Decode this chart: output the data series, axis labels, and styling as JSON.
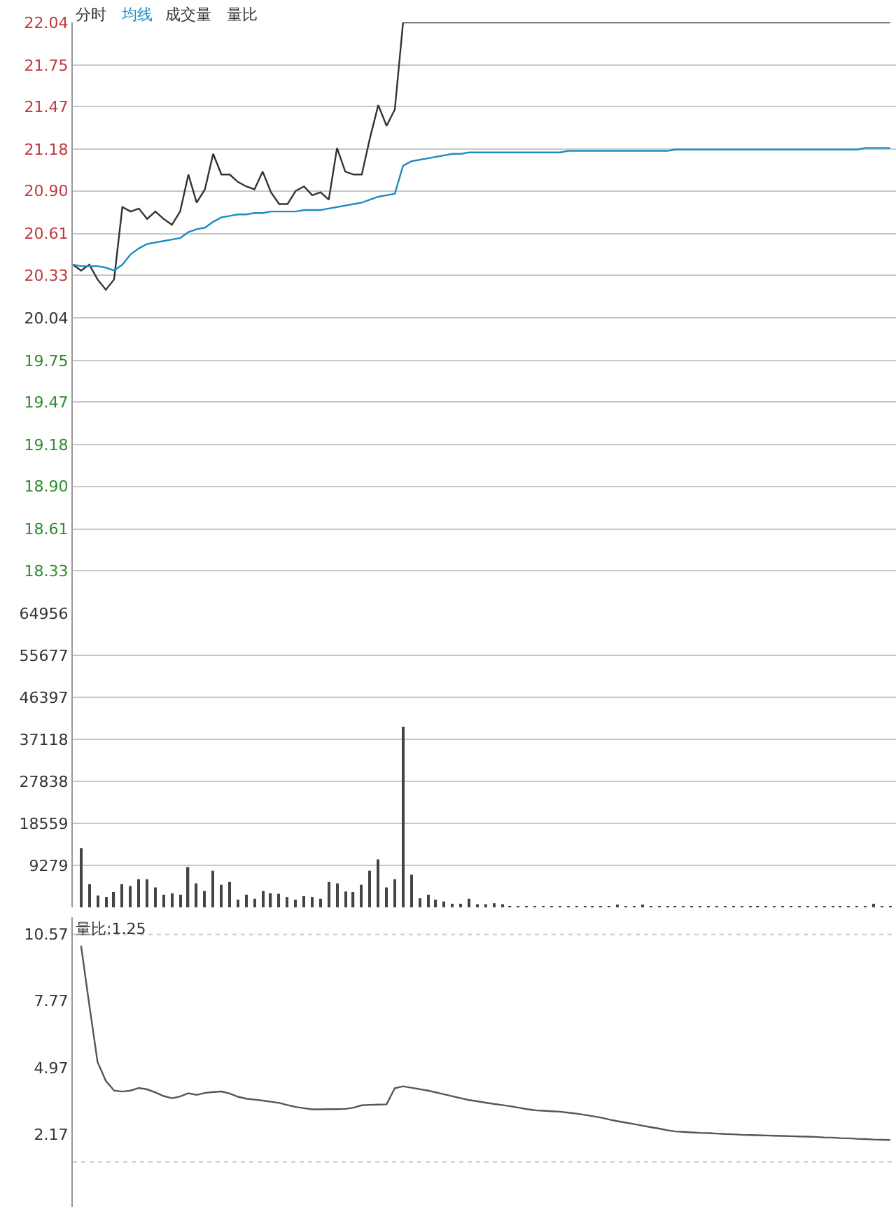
{
  "chart_data": [
    {
      "type": "line",
      "legend": "top left",
      "grid": "y",
      "tick_labels": "y",
      "line_style": "solid",
      "marker": "none",
      "annotations": [
        "成交量",
        "量比"
      ],
      "categories": [
        null,
        null,
        null,
        null,
        null,
        null,
        null,
        null,
        null,
        null,
        null,
        null,
        null,
        null,
        null,
        null,
        null,
        null,
        null,
        null,
        null,
        null,
        null,
        null,
        null,
        null,
        null,
        null,
        null,
        null,
        null,
        null,
        null,
        null,
        null,
        null,
        null,
        null,
        null,
        null,
        null,
        null,
        null,
        null,
        null,
        null,
        null,
        null,
        null,
        null,
        null,
        null,
        null,
        null,
        null,
        null,
        null,
        null,
        null,
        null,
        null,
        null,
        null,
        null,
        null,
        null,
        null,
        null,
        null,
        null,
        null,
        null,
        null,
        null,
        null,
        null,
        null,
        null,
        null,
        null,
        null,
        null,
        null,
        null,
        null,
        null,
        null,
        null,
        null,
        null,
        null,
        null,
        null,
        null,
        null,
        null,
        null,
        null,
        null,
        null
      ],
      "ylim": [
        18.04,
        22.04
      ],
      "yticks": [
        22.04,
        21.75,
        21.47,
        21.18,
        {
          "value": 20.9,
          "label": "20.90"
        },
        20.61,
        20.33,
        20.04,
        19.75,
        19.47,
        19.18,
        {
          "value": 18.9,
          "label": "18.90"
        },
        18.61,
        18.33
      ],
      "series": [
        {
          "name": "分时",
          "color": "#333333",
          "values": [
            20.4,
            20.36,
            20.4,
            20.3,
            20.23,
            20.3,
            20.79,
            20.76,
            20.78,
            20.71,
            20.76,
            20.71,
            20.67,
            20.76,
            21.01,
            20.82,
            20.91,
            21.15,
            21.01,
            21.01,
            20.96,
            20.93,
            20.91,
            21.03,
            20.89,
            20.81,
            20.81,
            20.9,
            20.93,
            20.87,
            20.89,
            20.84,
            21.19,
            21.03,
            21.01,
            21.01,
            21.26,
            21.48,
            21.34,
            21.45,
            22.04,
            22.04,
            22.04,
            22.04,
            22.04,
            22.04,
            22.04,
            22.04,
            22.04,
            22.04,
            22.04,
            22.04,
            22.04,
            22.04,
            22.04,
            22.04,
            22.04,
            22.04,
            22.04,
            22.04,
            22.04,
            22.04,
            22.04,
            22.04,
            22.04,
            22.04,
            22.04,
            22.04,
            22.04,
            22.04,
            22.04,
            22.04,
            22.04,
            22.04,
            22.04,
            22.04,
            22.04,
            22.04,
            22.04,
            22.04,
            22.04,
            22.04,
            22.04,
            22.04,
            22.04,
            22.04,
            22.04,
            22.04,
            22.04,
            22.04,
            22.04,
            22.04,
            22.04,
            22.04,
            22.04,
            22.04,
            22.04,
            22.04,
            22.04,
            22.04
          ]
        },
        {
          "name": "均线",
          "color": "#1e8bc3",
          "values": [
            20.4,
            20.39,
            20.39,
            20.39,
            20.38,
            20.36,
            20.4,
            20.47,
            20.51,
            20.54,
            20.55,
            20.56,
            20.57,
            20.58,
            20.62,
            20.64,
            20.65,
            20.69,
            20.72,
            20.73,
            20.74,
            20.74,
            20.75,
            20.75,
            20.76,
            20.76,
            20.76,
            20.76,
            20.77,
            20.77,
            20.77,
            20.78,
            20.79,
            20.8,
            20.81,
            20.82,
            20.84,
            20.86,
            20.87,
            20.88,
            21.07,
            21.1,
            21.11,
            21.12,
            21.13,
            21.14,
            21.15,
            21.15,
            21.16,
            21.16,
            21.16,
            21.16,
            21.16,
            21.16,
            21.16,
            21.16,
            21.16,
            21.16,
            21.16,
            21.16,
            21.17,
            21.17,
            21.17,
            21.17,
            21.17,
            21.17,
            21.17,
            21.17,
            21.17,
            21.17,
            21.17,
            21.17,
            21.17,
            21.18,
            21.18,
            21.18,
            21.18,
            21.18,
            21.18,
            21.18,
            21.18,
            21.18,
            21.18,
            21.18,
            21.18,
            21.18,
            21.18,
            21.18,
            21.18,
            21.18,
            21.18,
            21.18,
            21.18,
            21.18,
            21.18,
            21.18,
            21.19,
            21.19,
            21.19,
            21.19
          ]
        }
      ]
    },
    {
      "type": "bar",
      "grid": "y",
      "tick_labels": "y",
      "categories": [
        null,
        null,
        null,
        null,
        null,
        null,
        null,
        null,
        null,
        null,
        null,
        null,
        null,
        null,
        null,
        null,
        null,
        null,
        null,
        null,
        null,
        null,
        null,
        null,
        null,
        null,
        null,
        null,
        null,
        null,
        null,
        null,
        null,
        null,
        null,
        null,
        null,
        null,
        null,
        null,
        null,
        null,
        null,
        null,
        null,
        null,
        null,
        null,
        null,
        null,
        null,
        null,
        null,
        null,
        null,
        null,
        null,
        null,
        null,
        null,
        null,
        null,
        null,
        null,
        null,
        null,
        null,
        null,
        null,
        null,
        null,
        null,
        null,
        null,
        null,
        null,
        null,
        null,
        null,
        null,
        null,
        null,
        null,
        null,
        null,
        null,
        null,
        null,
        null,
        null,
        null,
        null,
        null,
        null,
        null,
        null,
        null,
        null,
        null,
        null
      ],
      "ylim": [
        0,
        64956
      ],
      "yticks": [
        64956,
        55677,
        46397,
        37118,
        27838,
        18559,
        9279
      ],
      "series": [
        {
          "color": "#444444",
          "values": [
            null,
            13100,
            5100,
            2600,
            2300,
            3400,
            5100,
            4700,
            6200,
            6200,
            4400,
            2800,
            3100,
            2800,
            8900,
            5300,
            3600,
            8100,
            5000,
            5600,
            1700,
            2800,
            1900,
            3600,
            3100,
            3000,
            2300,
            1700,
            2500,
            2300,
            1900,
            5600,
            5300,
            3500,
            3400,
            5000,
            8100,
            10600,
            4400,
            6200,
            39900,
            7200,
            2000,
            2800,
            1700,
            1300,
            800,
            800,
            1900,
            700,
            700,
            900,
            700,
            200,
            200,
            200,
            200,
            200,
            200,
            200,
            200,
            200,
            200,
            200,
            200,
            200,
            400,
            200,
            200,
            400,
            200,
            200,
            200,
            200,
            200,
            200,
            200,
            200,
            200,
            200,
            200,
            200,
            200,
            200,
            200,
            200,
            200,
            200,
            200,
            200,
            200,
            200,
            200,
            200,
            200,
            200,
            200,
            800,
            200,
            200
          ]
        }
      ]
    },
    {
      "type": "line",
      "grid": false,
      "tick_labels": "y",
      "line_style": "solid",
      "marker": "none",
      "annotations": [
        "量比:1.25"
      ],
      "categories": [
        null,
        null,
        null,
        null,
        null,
        null,
        null,
        null,
        null,
        null,
        null,
        null,
        null,
        null,
        null,
        null,
        null,
        null,
        null,
        null,
        null,
        null,
        null,
        null,
        null,
        null,
        null,
        null,
        null,
        null,
        null,
        null,
        null,
        null,
        null,
        null,
        null,
        null,
        null,
        null,
        null,
        null,
        null,
        null,
        null,
        null,
        null,
        null,
        null,
        null,
        null,
        null,
        null,
        null,
        null,
        null,
        null,
        null,
        null,
        null,
        null,
        null,
        null,
        null,
        null,
        null,
        null,
        null,
        null,
        null,
        null,
        null,
        null,
        null,
        null,
        null,
        null,
        null,
        null,
        null,
        null,
        null,
        null,
        null,
        null,
        null,
        null,
        null,
        null,
        null,
        null,
        null,
        null,
        null,
        null,
        null,
        null,
        null,
        null,
        null
      ],
      "ylim": [
        -0.9,
        11.3
      ],
      "yticks": [
        10.57,
        7.77,
        4.97,
        2.17
      ],
      "ref_lines": [
        {
          "axis": "y",
          "value": 10.57,
          "color": "#c8c8c8",
          "line_style": "dotted"
        },
        {
          "axis": "y",
          "value": 1.0,
          "color": "#c8c8c8",
          "line_style": "dotted"
        }
      ],
      "series": [
        {
          "color": "#555555",
          "values": [
            null,
            10.1,
            7.6,
            5.2,
            4.41,
            4.0,
            3.96,
            4.0,
            4.11,
            4.05,
            3.92,
            3.77,
            3.68,
            3.75,
            3.89,
            3.82,
            3.9,
            3.94,
            3.96,
            3.88,
            3.74,
            3.66,
            3.62,
            3.58,
            3.53,
            3.48,
            3.39,
            3.31,
            3.26,
            3.21,
            3.21,
            3.22,
            3.22,
            3.23,
            3.28,
            3.38,
            3.4,
            3.41,
            3.42,
            4.1,
            4.18,
            4.12,
            4.06,
            4.0,
            3.92,
            3.84,
            3.76,
            3.68,
            3.6,
            3.55,
            3.49,
            3.44,
            3.39,
            3.34,
            3.28,
            3.22,
            3.17,
            3.15,
            3.13,
            3.11,
            3.07,
            3.03,
            2.98,
            2.92,
            2.86,
            2.78,
            2.71,
            2.65,
            2.59,
            2.52,
            2.46,
            2.4,
            2.33,
            2.28,
            2.26,
            2.24,
            2.22,
            2.21,
            2.19,
            2.17,
            2.16,
            2.14,
            2.13,
            2.12,
            2.11,
            2.1,
            2.09,
            2.08,
            2.07,
            2.06,
            2.05,
            2.03,
            2.02,
            2.0,
            1.99,
            1.97,
            1.96,
            1.94,
            1.93,
            1.92
          ]
        }
      ]
    }
  ]
}
